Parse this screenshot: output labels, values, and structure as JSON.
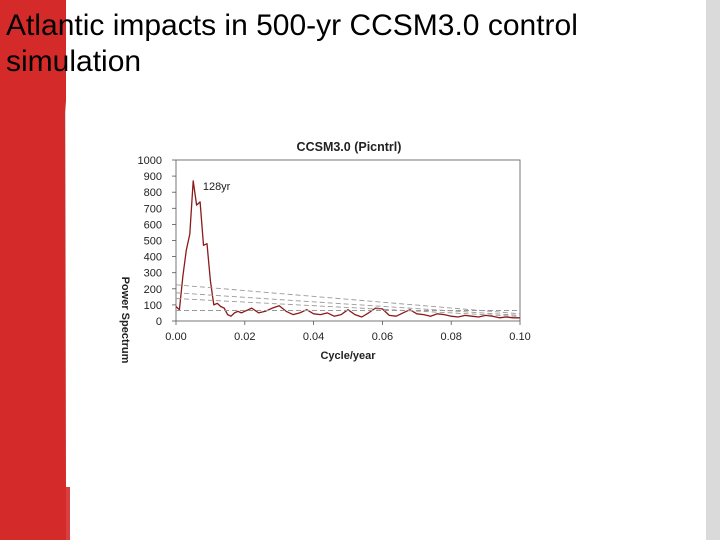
{
  "slide": {
    "title": "Atlantic impacts in 500-yr CCSM3.0 control simulation",
    "colors": {
      "accent_red": "#d42a2a",
      "accent_gray": "#dadada",
      "background": "#ffffff"
    }
  },
  "chart_data": {
    "type": "line",
    "title": "CCSM3.0 (Picntrl)",
    "xlabel": "Cycle/year",
    "ylabel": "Power Spectrum",
    "xlim": [
      0,
      0.1
    ],
    "ylim": [
      0,
      1000
    ],
    "x_ticks": [
      "0.00",
      "0.02",
      "0.04",
      "0.06",
      "0.08",
      "0.10"
    ],
    "y_ticks": [
      "0",
      "100",
      "200",
      "300",
      "400",
      "500",
      "600",
      "700",
      "800",
      "900",
      "1000"
    ],
    "grid": false,
    "annotations": [
      {
        "text": "128yr",
        "x": 0.0078,
        "y": 840
      }
    ],
    "series": [
      {
        "color": "#8b1a1a",
        "style": "solid",
        "x": [
          0.0,
          0.001,
          0.002,
          0.003,
          0.004,
          0.005,
          0.006,
          0.007,
          0.008,
          0.009,
          0.01,
          0.011,
          0.012,
          0.013,
          0.014,
          0.015,
          0.016,
          0.017,
          0.018,
          0.019,
          0.02,
          0.022,
          0.024,
          0.026,
          0.028,
          0.03,
          0.032,
          0.034,
          0.036,
          0.038,
          0.04,
          0.042,
          0.044,
          0.046,
          0.048,
          0.05,
          0.052,
          0.054,
          0.056,
          0.058,
          0.06,
          0.062,
          0.064,
          0.066,
          0.068,
          0.07,
          0.072,
          0.074,
          0.076,
          0.078,
          0.08,
          0.082,
          0.084,
          0.086,
          0.088,
          0.09,
          0.092,
          0.094,
          0.096,
          0.098,
          0.1
        ],
        "y": [
          90,
          70,
          280,
          440,
          540,
          870,
          720,
          740,
          470,
          480,
          250,
          100,
          110,
          90,
          80,
          40,
          30,
          50,
          60,
          50,
          60,
          80,
          50,
          60,
          80,
          95,
          60,
          40,
          50,
          70,
          45,
          40,
          50,
          30,
          40,
          70,
          40,
          25,
          50,
          80,
          75,
          35,
          30,
          50,
          70,
          45,
          40,
          30,
          45,
          40,
          30,
          25,
          35,
          30,
          25,
          35,
          30,
          20,
          25,
          20,
          20
        ]
      },
      {
        "color": "#999999",
        "style": "dashed",
        "x": [
          0.0,
          0.1
        ],
        "y": [
          225,
          45
        ]
      },
      {
        "color": "#999999",
        "style": "dashed",
        "x": [
          0.0,
          0.1
        ],
        "y": [
          175,
          35
        ]
      },
      {
        "color": "#999999",
        "style": "dashed",
        "x": [
          0.0,
          0.1
        ],
        "y": [
          140,
          28
        ]
      },
      {
        "color": "#999999",
        "style": "dashed",
        "x": [
          0.0,
          0.1
        ],
        "y": [
          65,
          65
        ]
      }
    ]
  }
}
